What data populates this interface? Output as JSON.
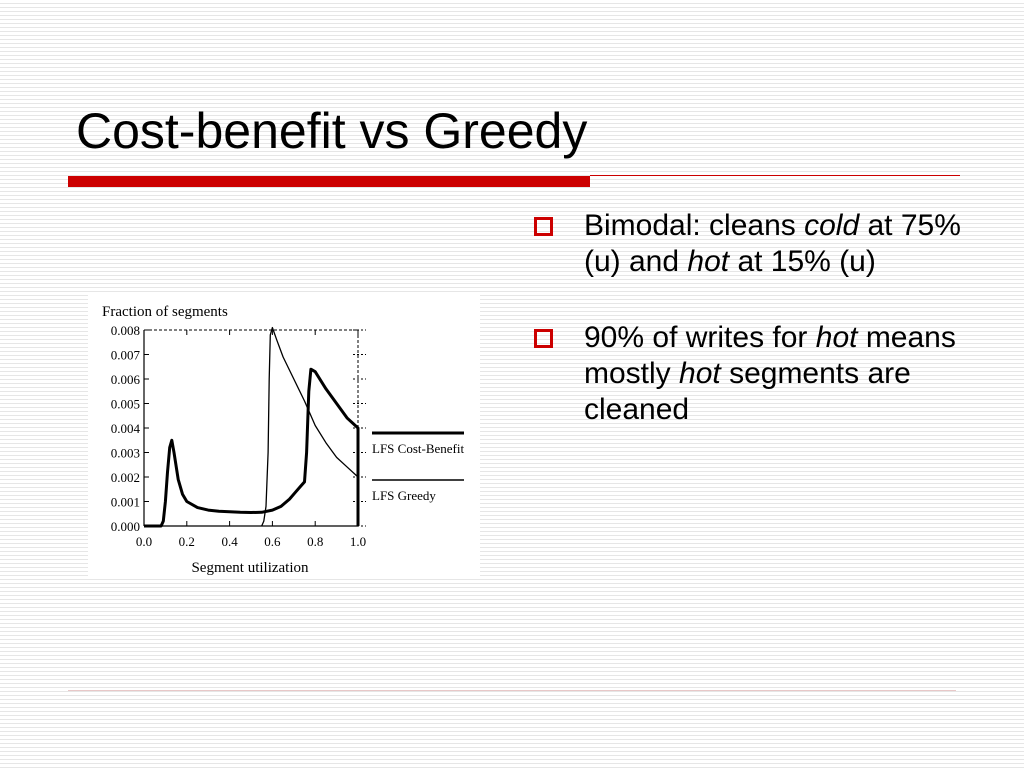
{
  "slide": {
    "title": "Cost-benefit vs Greedy"
  },
  "bullets": [
    {
      "parts": [
        {
          "text": "Bimodal: cleans ",
          "italic": false
        },
        {
          "text": "cold",
          "italic": true
        },
        {
          "text": " at 75% (u) and ",
          "italic": false
        },
        {
          "text": "hot",
          "italic": true
        },
        {
          "text": " at 15% (u)",
          "italic": false
        }
      ]
    },
    {
      "parts": [
        {
          "text": "90% of writes for ",
          "italic": false
        },
        {
          "text": "hot",
          "italic": true
        },
        {
          "text": " means mostly ",
          "italic": false
        },
        {
          "text": "hot",
          "italic": true
        },
        {
          "text": " segments are cleaned",
          "italic": false
        }
      ]
    }
  ],
  "icons": {
    "bullet": "hollow-square-icon"
  },
  "colors": {
    "accent": "#cc0000",
    "ink": "#000000"
  },
  "chart_data": {
    "type": "line",
    "ylabel": "Fraction of segments",
    "xlabel": "Segment utilization",
    "xlim": [
      0.0,
      1.0
    ],
    "ylim": [
      0.0,
      0.008
    ],
    "x_ticks": [
      "0.0",
      "0.2",
      "0.4",
      "0.6",
      "0.8",
      "1.0"
    ],
    "y_ticks": [
      "0.000",
      "0.001",
      "0.002",
      "0.003",
      "0.004",
      "0.005",
      "0.006",
      "0.007",
      "0.008"
    ],
    "legend_position": "right",
    "series": [
      {
        "name": "LFS Cost-Benefit",
        "style": "thick",
        "x": [
          0.0,
          0.08,
          0.09,
          0.1,
          0.11,
          0.12,
          0.13,
          0.14,
          0.16,
          0.18,
          0.2,
          0.25,
          0.3,
          0.35,
          0.4,
          0.45,
          0.5,
          0.55,
          0.6,
          0.64,
          0.68,
          0.71,
          0.73,
          0.75,
          0.76,
          0.77,
          0.78,
          0.8,
          0.85,
          0.9,
          0.95,
          1.0,
          1.0
        ],
        "y": [
          0.0,
          0.0,
          0.0002,
          0.001,
          0.0022,
          0.0032,
          0.0035,
          0.003,
          0.0019,
          0.0013,
          0.001,
          0.00075,
          0.00065,
          0.0006,
          0.00058,
          0.00056,
          0.00055,
          0.00056,
          0.00065,
          0.0008,
          0.0011,
          0.0014,
          0.0016,
          0.0018,
          0.003,
          0.0055,
          0.0064,
          0.0063,
          0.0056,
          0.005,
          0.0044,
          0.004,
          0.0
        ]
      },
      {
        "name": "LFS Greedy",
        "style": "thin",
        "x": [
          0.55,
          0.56,
          0.57,
          0.58,
          0.585,
          0.59,
          0.6,
          0.62,
          0.65,
          0.7,
          0.75,
          0.8,
          0.85,
          0.9,
          0.95,
          1.0
        ],
        "y": [
          0.0,
          0.0002,
          0.0008,
          0.003,
          0.006,
          0.0078,
          0.0081,
          0.0076,
          0.0069,
          0.006,
          0.0051,
          0.0041,
          0.0034,
          0.0028,
          0.0024,
          0.002
        ]
      }
    ]
  }
}
